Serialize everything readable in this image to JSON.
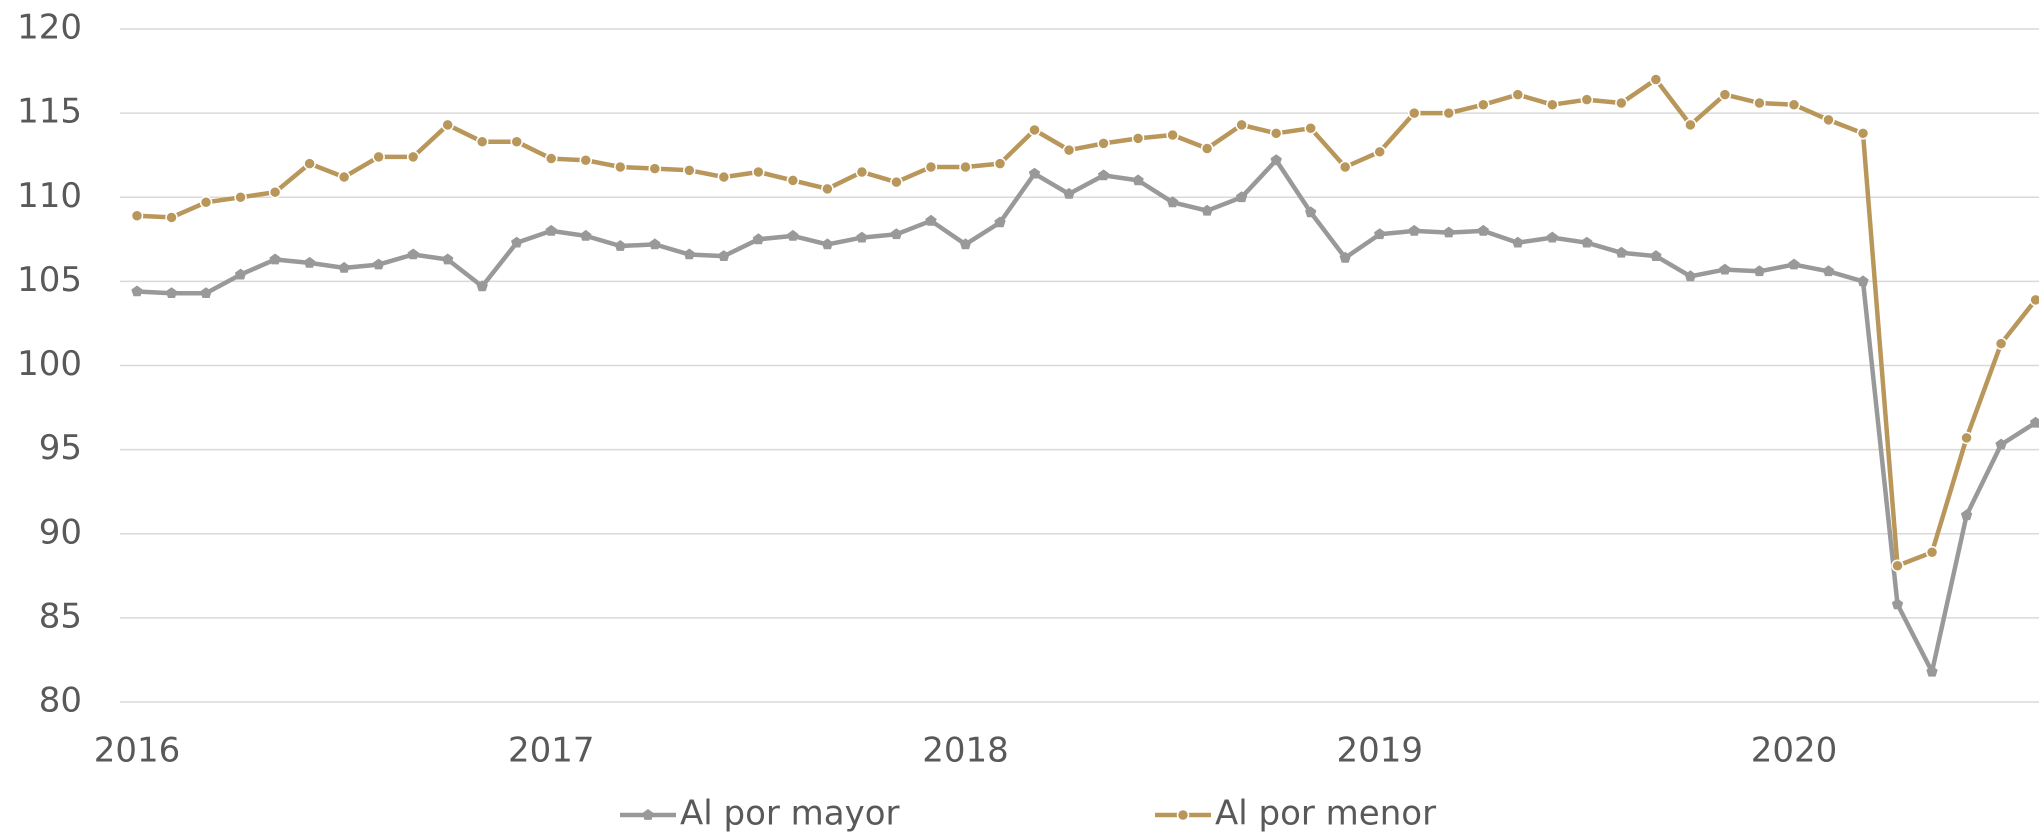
{
  "chart_data": {
    "type": "line",
    "categories": [
      "2016",
      null,
      null,
      null,
      null,
      null,
      null,
      null,
      null,
      null,
      null,
      null,
      "2017",
      null,
      null,
      null,
      null,
      null,
      null,
      null,
      null,
      null,
      null,
      null,
      "2018",
      null,
      null,
      null,
      null,
      null,
      null,
      null,
      null,
      null,
      null,
      null,
      "2019",
      null,
      null,
      null,
      null,
      null,
      null,
      null,
      null,
      null,
      null,
      null,
      "2020",
      null,
      null,
      null,
      null,
      null,
      null,
      null
    ],
    "series": [
      {
        "name": "Al por mayor",
        "color": "#999999",
        "marker": "pentagon",
        "values": [
          104.4,
          104.3,
          104.3,
          105.4,
          106.3,
          106.1,
          105.8,
          106.0,
          106.6,
          106.3,
          104.7,
          107.3,
          108.0,
          107.7,
          107.1,
          107.2,
          106.6,
          106.5,
          107.5,
          107.7,
          107.2,
          107.6,
          107.8,
          108.6,
          107.2,
          108.5,
          111.4,
          110.2,
          111.3,
          111.0,
          109.7,
          109.2,
          110.0,
          112.2,
          109.1,
          106.4,
          107.8,
          108.0,
          107.9,
          108.0,
          107.3,
          107.6,
          107.3,
          106.7,
          106.5,
          105.3,
          105.7,
          105.6,
          106.0,
          105.6,
          105.0,
          85.8,
          81.8,
          91.1,
          95.3,
          96.6
        ]
      },
      {
        "name": "Al por menor",
        "color": "#b9975b",
        "marker": "circle",
        "values": [
          108.9,
          108.8,
          109.7,
          110.0,
          110.3,
          112.0,
          111.2,
          112.4,
          112.4,
          114.3,
          113.3,
          113.3,
          112.3,
          112.2,
          111.8,
          111.7,
          111.6,
          111.2,
          111.5,
          111.0,
          110.5,
          111.5,
          110.9,
          111.8,
          111.8,
          112.0,
          114.0,
          112.8,
          113.2,
          113.5,
          113.7,
          112.9,
          114.3,
          113.8,
          114.1,
          111.8,
          112.7,
          115.0,
          115.0,
          115.5,
          116.1,
          115.5,
          115.8,
          115.6,
          117.0,
          114.3,
          116.1,
          115.6,
          115.5,
          114.6,
          113.8,
          88.1,
          88.9,
          95.7,
          101.3,
          103.9
        ]
      }
    ],
    "ylim": [
      80,
      120
    ],
    "yticks": [
      80,
      85,
      90,
      95,
      100,
      105,
      110,
      115,
      120
    ],
    "grid": true,
    "legend": "bottom"
  }
}
